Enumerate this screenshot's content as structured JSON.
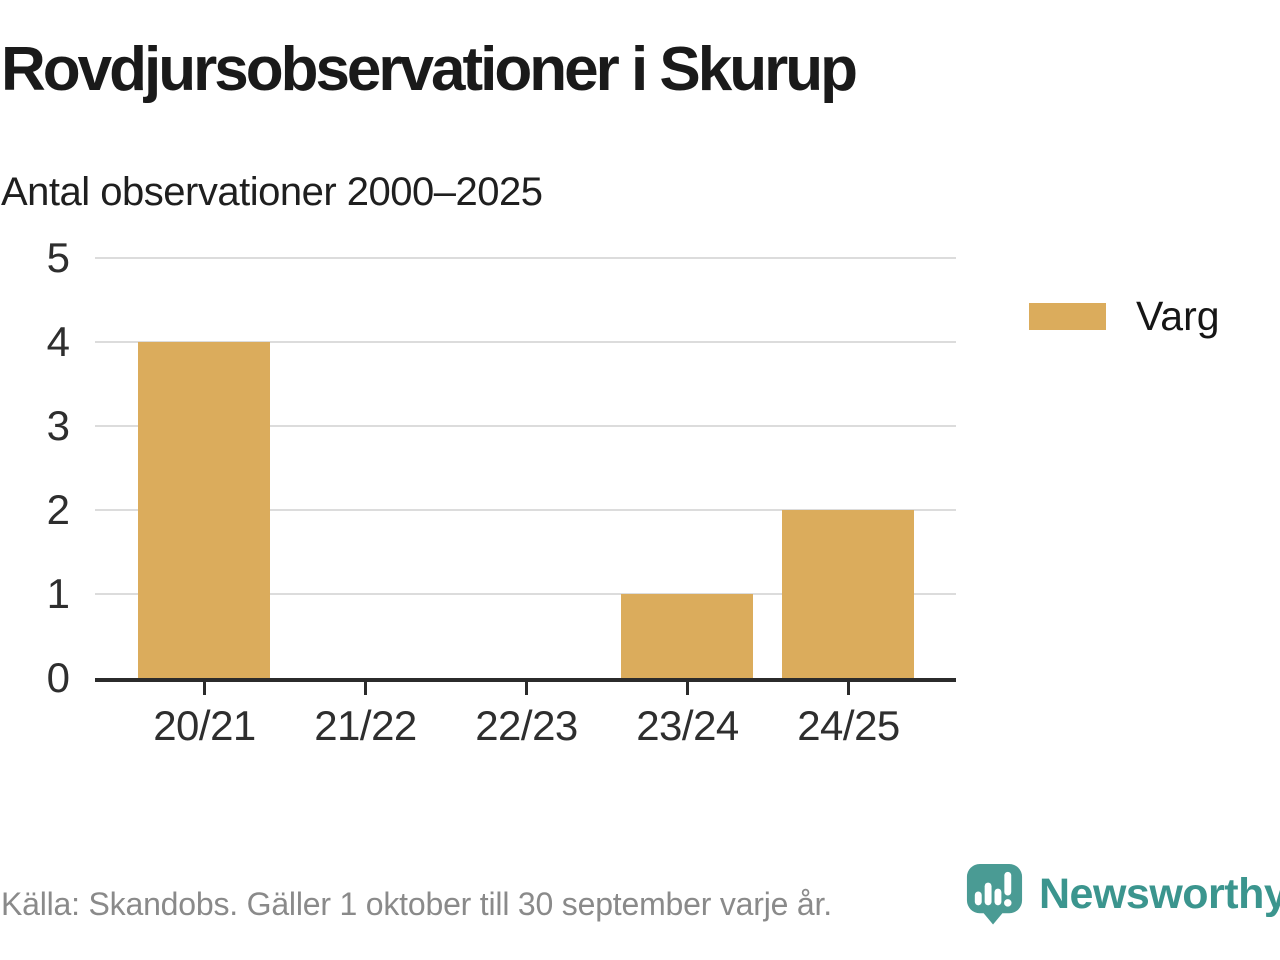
{
  "header": {
    "title": "Rovdjursobservationer i Skurup",
    "subtitle": "Antal observationer 2000–2025"
  },
  "legend": {
    "label": "Varg",
    "swatch_color": "#dbac5c"
  },
  "footer": {
    "source": "Källa: Skandobs. Gäller 1 oktober till 30 september varje år.",
    "brand": "Newsworthy"
  },
  "colors": {
    "bar": "#dbac5c",
    "grid": "#dcdcdc",
    "axis": "#2b2b2b",
    "axis_text": "#2e2e2e",
    "title_text": "#1a1a1a",
    "muted_text": "#8a8a8a",
    "brand_teal_icon": "#4a9b94",
    "brand_teal_text": "#3b958e"
  },
  "chart_data": {
    "type": "bar",
    "title": "Rovdjursobservationer i Skurup",
    "subtitle": "Antal observationer 2000–2025",
    "categories": [
      "20/21",
      "21/22",
      "22/23",
      "23/24",
      "24/25"
    ],
    "series": [
      {
        "name": "Varg",
        "values": [
          4,
          0,
          0,
          1,
          2
        ]
      }
    ],
    "xlabel": "",
    "ylabel": "",
    "ylim": [
      0,
      5
    ],
    "yticks": [
      0,
      1,
      2,
      3,
      4,
      5
    ],
    "grid": "horizontal",
    "legend_position": "right"
  }
}
